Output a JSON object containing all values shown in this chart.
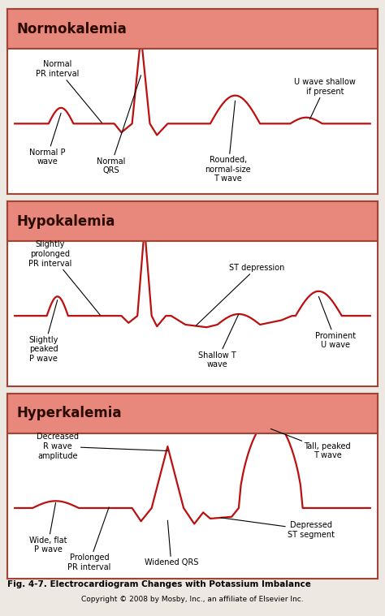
{
  "title_normo": "Normokalemia",
  "title_hypo": "Hypokalemia",
  "title_hyper": "Hyperkalemia",
  "header_color": "#E8877C",
  "header_text_color": "#2B0A00",
  "border_color": "#A04535",
  "panel_bg": "#FFFFFF",
  "fig_bg": "#EDE8E2",
  "ecg_color": "#BB1010",
  "ecg_linewidth": 1.6,
  "label_fontsize": 7.0,
  "title_fontsize": 12,
  "footer1": "Fig. 4-7. Electrocardiogram Changes with Potassium Imbalance",
  "footer2": "Copyright © 2008 by Mosby, Inc., an affiliate of Elsevier Inc.",
  "footer1_fontsize": 7.5,
  "footer2_fontsize": 6.5
}
